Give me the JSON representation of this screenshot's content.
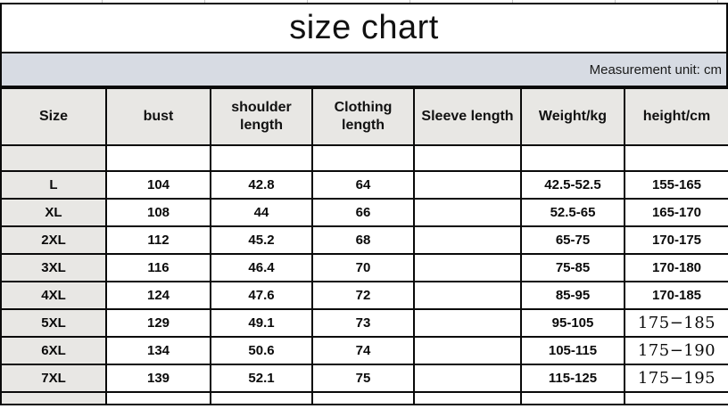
{
  "chart_data": {
    "type": "table",
    "title": "size chart",
    "unit_note": "Measurement unit: cm",
    "columns": [
      "Size",
      "bust",
      "shoulder\nlength",
      "Clothing\nlength",
      "Sleeve length",
      "Weight/kg",
      "height/cm"
    ],
    "column_keys": [
      "size",
      "bust",
      "shoulder_length",
      "clothing_length",
      "sleeve_length",
      "weight_kg",
      "height_cm"
    ],
    "rows": [
      {
        "size": "L",
        "bust": "104",
        "shoulder_length": "42.8",
        "clothing_length": "64",
        "sleeve_length": "",
        "weight_kg": "42.5-52.5",
        "height_cm": "155-165",
        "height_serif": false
      },
      {
        "size": "XL",
        "bust": "108",
        "shoulder_length": "44",
        "clothing_length": "66",
        "sleeve_length": "",
        "weight_kg": "52.5-65",
        "height_cm": "165-170",
        "height_serif": false
      },
      {
        "size": "2XL",
        "bust": "112",
        "shoulder_length": "45.2",
        "clothing_length": "68",
        "sleeve_length": "",
        "weight_kg": "65-75",
        "height_cm": "170-175",
        "height_serif": false
      },
      {
        "size": "3XL",
        "bust": "116",
        "shoulder_length": "46.4",
        "clothing_length": "70",
        "sleeve_length": "",
        "weight_kg": "75-85",
        "height_cm": "170-180",
        "height_serif": false
      },
      {
        "size": "4XL",
        "bust": "124",
        "shoulder_length": "47.6",
        "clothing_length": "72",
        "sleeve_length": "",
        "weight_kg": "85-95",
        "height_cm": "170-185",
        "height_serif": false
      },
      {
        "size": "5XL",
        "bust": "129",
        "shoulder_length": "49.1",
        "clothing_length": "73",
        "sleeve_length": "",
        "weight_kg": "95-105",
        "height_cm": "175−185",
        "height_serif": true
      },
      {
        "size": "6XL",
        "bust": "134",
        "shoulder_length": "50.6",
        "clothing_length": "74",
        "sleeve_length": "",
        "weight_kg": "105-115",
        "height_cm": "175−190",
        "height_serif": true
      },
      {
        "size": "7XL",
        "bust": "139",
        "shoulder_length": "52.1",
        "clothing_length": "75",
        "sleeve_length": "",
        "weight_kg": "115-125",
        "height_cm": "175−195",
        "height_serif": true
      }
    ],
    "colors": {
      "unit_bar_bg": "#d7dbe3",
      "header_cell_bg": "#e8e7e4",
      "grid_border": "#0a0a0a"
    }
  }
}
